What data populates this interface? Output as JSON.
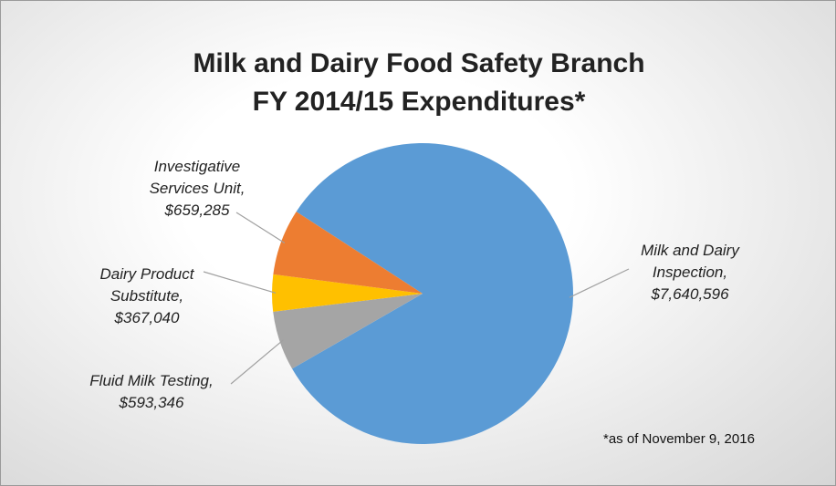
{
  "chart_data": {
    "type": "pie",
    "title": "Milk and Dairy Food Safety Branch\nFY 2014/15 Expenditures*",
    "annotation": "*as of November 9, 2016",
    "categories": [
      "Milk and Dairy Inspection,",
      "Fluid Milk Testing,",
      "Dairy Product Substitute,",
      "Investigative Services Unit,"
    ],
    "values": [
      7640596,
      593346,
      367040,
      659285
    ],
    "value_labels": [
      "$7,640,596",
      "$593,346",
      "$367,040",
      "$659,285"
    ],
    "colors": [
      "#5b9bd5",
      "#a5a5a5",
      "#ffc000",
      "#ed7d31"
    ]
  }
}
